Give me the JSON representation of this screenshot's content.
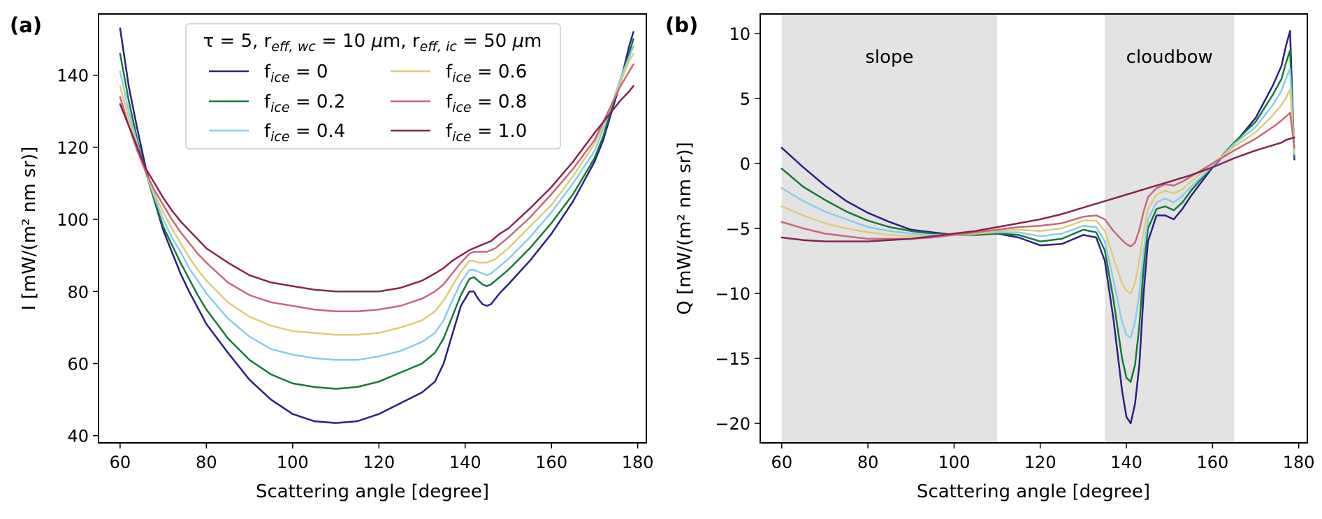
{
  "figure": {
    "panel_a_label": "(a)",
    "panel_b_label": "(b)"
  },
  "colors": {
    "series": [
      "#2a1e87",
      "#137a35",
      "#88ccee",
      "#ddcc77",
      "#cc6677",
      "#882255"
    ],
    "shade": "#e3e3e3"
  },
  "chart_data": [
    {
      "type": "line",
      "panel": "(a)",
      "xlabel": "Scattering angle [degree]",
      "ylabel": "I [mW/(m² nm sr)]",
      "xlim": [
        55,
        182
      ],
      "ylim": [
        38,
        157
      ],
      "xticks": [
        60,
        80,
        100,
        120,
        140,
        160,
        180
      ],
      "yticks": [
        40,
        60,
        80,
        100,
        120,
        140
      ],
      "legend": {
        "title": "τ = 5, r_eff,wc = 10 μm, r_eff,ic = 50 μm",
        "placement": "top-center",
        "ncol": 2
      },
      "series": [
        {
          "name": "f_ice = 0",
          "x": [
            60,
            62,
            64,
            66,
            68,
            70,
            72,
            74,
            76,
            78,
            80,
            85,
            90,
            95,
            100,
            105,
            110,
            115,
            120,
            125,
            130,
            133,
            135,
            137,
            139,
            141,
            142,
            143,
            144,
            145,
            146,
            147,
            148,
            150,
            155,
            160,
            165,
            170,
            172,
            174,
            176,
            178,
            179
          ],
          "y": [
            153,
            137,
            125,
            114,
            105,
            97,
            91,
            85,
            80,
            75.5,
            71,
            63,
            55.5,
            50,
            46,
            44,
            43.5,
            44,
            46,
            49,
            52,
            55,
            60,
            68,
            76,
            80,
            80,
            78,
            76.5,
            76,
            76.5,
            78,
            79.5,
            82,
            88.5,
            96,
            105,
            116,
            122,
            130,
            138,
            148,
            152
          ]
        },
        {
          "name": "f_ice = 0.2",
          "x": [
            60,
            62,
            64,
            66,
            68,
            70,
            72,
            74,
            76,
            78,
            80,
            85,
            90,
            95,
            100,
            105,
            110,
            115,
            120,
            125,
            130,
            133,
            135,
            137,
            139,
            141,
            142,
            143,
            144,
            145,
            146,
            147,
            148,
            150,
            155,
            160,
            165,
            170,
            172,
            174,
            176,
            178,
            179
          ],
          "y": [
            146,
            133,
            122,
            113,
            105,
            98,
            93,
            88,
            83.5,
            79,
            75,
            67,
            61,
            57,
            54.5,
            53.5,
            53,
            53.5,
            55,
            57.5,
            60,
            63,
            67,
            73,
            79,
            83.5,
            84,
            83,
            82,
            81.5,
            82,
            83,
            84,
            86,
            92,
            99,
            107,
            117,
            123,
            131,
            139,
            146,
            150
          ]
        },
        {
          "name": "f_ice = 0.4",
          "x": [
            60,
            62,
            64,
            66,
            68,
            70,
            72,
            74,
            76,
            78,
            80,
            85,
            90,
            95,
            100,
            105,
            110,
            115,
            120,
            125,
            130,
            133,
            135,
            137,
            139,
            141,
            142,
            143,
            144,
            145,
            146,
            147,
            148,
            150,
            155,
            160,
            165,
            170,
            172,
            174,
            176,
            178,
            179
          ],
          "y": [
            141,
            130,
            121,
            113,
            106,
            100,
            95,
            91,
            86.5,
            83,
            79.5,
            72.5,
            67.5,
            64,
            62.5,
            61.5,
            61,
            61,
            62,
            63.5,
            66,
            68.5,
            72,
            77.5,
            82.5,
            86,
            86,
            85.5,
            85,
            84.5,
            85,
            86,
            87,
            89,
            95,
            102,
            110,
            119,
            125,
            132,
            139,
            145,
            148
          ]
        },
        {
          "name": "f_ice = 0.6",
          "x": [
            60,
            62,
            64,
            66,
            68,
            70,
            72,
            74,
            76,
            78,
            80,
            85,
            90,
            95,
            100,
            105,
            110,
            115,
            120,
            125,
            130,
            133,
            135,
            137,
            139,
            141,
            142,
            143,
            144,
            145,
            146,
            147,
            148,
            150,
            155,
            160,
            165,
            170,
            172,
            174,
            176,
            178,
            179
          ],
          "y": [
            137,
            128,
            120,
            113,
            107,
            102,
            97.5,
            93.5,
            89.5,
            86,
            83,
            77,
            73,
            70.5,
            69,
            68.5,
            68,
            68,
            68.5,
            70,
            72,
            74.5,
            77.5,
            81.5,
            85.5,
            88.5,
            88.5,
            88,
            88,
            88,
            88.5,
            89,
            90,
            92,
            98,
            104,
            112,
            121,
            126,
            132,
            138,
            144,
            146
          ]
        },
        {
          "name": "f_ice = 0.8",
          "x": [
            60,
            62,
            64,
            66,
            68,
            70,
            72,
            74,
            76,
            78,
            80,
            85,
            90,
            95,
            100,
            105,
            110,
            115,
            120,
            125,
            130,
            133,
            135,
            137,
            139,
            141,
            142,
            143,
            144,
            145,
            146,
            147,
            148,
            150,
            155,
            160,
            165,
            170,
            172,
            174,
            176,
            178,
            179
          ],
          "y": [
            134,
            126,
            119,
            113,
            108,
            104,
            100,
            96.5,
            93.5,
            90.5,
            88,
            82.5,
            79,
            77,
            76,
            75,
            74.5,
            74.5,
            75,
            76,
            78,
            80,
            82,
            85,
            88,
            90.5,
            91,
            91,
            91,
            91,
            91.5,
            92,
            93,
            95,
            100.5,
            107,
            114,
            122,
            127,
            132,
            137,
            141,
            143
          ]
        },
        {
          "name": "f_ice = 1.0",
          "x": [
            60,
            62,
            64,
            66,
            68,
            70,
            72,
            74,
            76,
            78,
            80,
            85,
            90,
            95,
            100,
            105,
            110,
            115,
            120,
            125,
            130,
            133,
            135,
            137,
            139,
            141,
            142,
            143,
            144,
            145,
            146,
            147,
            148,
            150,
            155,
            160,
            165,
            170,
            172,
            174,
            176,
            178,
            179
          ],
          "y": [
            132,
            126,
            120,
            114,
            110,
            106,
            102.5,
            99.5,
            97,
            94.5,
            92,
            88,
            84.5,
            82.5,
            81.5,
            80.5,
            80,
            80,
            80,
            81,
            83,
            85,
            86.5,
            88.5,
            90,
            91.5,
            92,
            92.5,
            93,
            93.5,
            94,
            95,
            96,
            97.5,
            103,
            109,
            116,
            124,
            127,
            130,
            133,
            135.5,
            137
          ]
        }
      ]
    },
    {
      "type": "line",
      "panel": "(b)",
      "xlabel": "Scattering angle [degree]",
      "ylabel": "Q [mW/(m² nm sr)]",
      "xlim": [
        55,
        182
      ],
      "ylim": [
        -21.5,
        11.5
      ],
      "xticks": [
        60,
        80,
        100,
        120,
        140,
        160,
        180
      ],
      "yticks": [
        -20,
        -15,
        -10,
        -5,
        0,
        5,
        10
      ],
      "shaded_regions": [
        {
          "label": "slope",
          "x": [
            60,
            110
          ]
        },
        {
          "label": "cloudbow",
          "x": [
            135,
            165
          ]
        }
      ],
      "series": [
        {
          "name": "f_ice = 0",
          "x": [
            60,
            65,
            70,
            75,
            80,
            85,
            90,
            95,
            100,
            105,
            110,
            115,
            120,
            125,
            130,
            133,
            135,
            137,
            139,
            140,
            141,
            142,
            143,
            144,
            145,
            147,
            149,
            151,
            153,
            155,
            160,
            165,
            170,
            174,
            176,
            177,
            178,
            179
          ],
          "y": [
            1.2,
            -0.3,
            -1.7,
            -2.9,
            -3.8,
            -4.5,
            -5.1,
            -5.3,
            -5.5,
            -5.5,
            -5.4,
            -5.7,
            -6.3,
            -6.2,
            -5.5,
            -5.7,
            -7.5,
            -12,
            -17.5,
            -19.5,
            -20,
            -18.5,
            -15.5,
            -10,
            -6,
            -4,
            -4,
            -4.3,
            -3.5,
            -2.5,
            -0.3,
            1.5,
            3.5,
            6,
            7.5,
            9,
            10.2,
            0.3
          ]
        },
        {
          "name": "f_ice = 0.2",
          "x": [
            60,
            65,
            70,
            75,
            80,
            85,
            90,
            95,
            100,
            105,
            110,
            115,
            120,
            125,
            130,
            133,
            135,
            137,
            139,
            140,
            141,
            142,
            143,
            144,
            145,
            147,
            149,
            151,
            153,
            155,
            160,
            165,
            170,
            174,
            176,
            177,
            178,
            179
          ],
          "y": [
            -0.4,
            -1.8,
            -2.8,
            -3.7,
            -4.4,
            -4.9,
            -5.2,
            -5.4,
            -5.5,
            -5.5,
            -5.4,
            -5.5,
            -6,
            -5.8,
            -5.1,
            -5.3,
            -6.7,
            -10.5,
            -15,
            -16.5,
            -16.8,
            -15.5,
            -12.5,
            -8,
            -5,
            -3.5,
            -3.3,
            -3.6,
            -3,
            -2.1,
            -0.2,
            1.6,
            3.2,
            5.3,
            6.5,
            7.7,
            8.7,
            0.5
          ]
        },
        {
          "name": "f_ice = 0.4",
          "x": [
            60,
            65,
            70,
            75,
            80,
            85,
            90,
            95,
            100,
            105,
            110,
            115,
            120,
            125,
            130,
            133,
            135,
            137,
            139,
            140,
            141,
            142,
            143,
            144,
            145,
            147,
            149,
            151,
            153,
            155,
            160,
            165,
            170,
            174,
            176,
            177,
            178,
            179
          ],
          "y": [
            -1.9,
            -2.9,
            -3.7,
            -4.3,
            -4.9,
            -5.2,
            -5.4,
            -5.5,
            -5.5,
            -5.4,
            -5.3,
            -5.3,
            -5.6,
            -5.4,
            -4.8,
            -4.9,
            -6,
            -9,
            -12.2,
            -13.2,
            -13.4,
            -12.2,
            -10,
            -6.8,
            -4.3,
            -3,
            -2.7,
            -3,
            -2.5,
            -1.8,
            -0.2,
            1.5,
            2.8,
            4.5,
            5.6,
            6.5,
            7.3,
            0.7
          ]
        },
        {
          "name": "f_ice = 0.6",
          "x": [
            60,
            65,
            70,
            75,
            80,
            85,
            90,
            95,
            100,
            105,
            110,
            115,
            120,
            125,
            130,
            133,
            135,
            137,
            139,
            140,
            141,
            142,
            143,
            144,
            145,
            147,
            149,
            151,
            153,
            155,
            160,
            165,
            170,
            174,
            176,
            177,
            178,
            179
          ],
          "y": [
            -3.3,
            -4,
            -4.6,
            -5,
            -5.3,
            -5.5,
            -5.6,
            -5.6,
            -5.5,
            -5.4,
            -5.2,
            -5.1,
            -5.2,
            -5,
            -4.4,
            -4.4,
            -5.2,
            -7.3,
            -9.2,
            -9.8,
            -10,
            -9.2,
            -7.5,
            -5.2,
            -3.5,
            -2.4,
            -2.1,
            -2.3,
            -2,
            -1.4,
            0,
            1.3,
            2.4,
            3.7,
            4.5,
            5,
            5.7,
            0.9
          ]
        },
        {
          "name": "f_ice = 0.8",
          "x": [
            60,
            65,
            70,
            75,
            80,
            85,
            90,
            95,
            100,
            105,
            110,
            115,
            120,
            125,
            130,
            133,
            135,
            137,
            139,
            140,
            141,
            142,
            143,
            144,
            145,
            147,
            149,
            151,
            153,
            155,
            160,
            165,
            170,
            174,
            176,
            177,
            178,
            179
          ],
          "y": [
            -4.5,
            -5,
            -5.4,
            -5.6,
            -5.8,
            -5.8,
            -5.8,
            -5.7,
            -5.5,
            -5.3,
            -5.1,
            -4.9,
            -4.8,
            -4.6,
            -4.1,
            -4,
            -4.3,
            -5.2,
            -5.9,
            -6.2,
            -6.4,
            -6.1,
            -5.1,
            -3.7,
            -2.6,
            -1.9,
            -1.6,
            -1.7,
            -1.4,
            -1,
            0,
            1,
            1.9,
            2.8,
            3.3,
            3.6,
            3.9,
            1.2
          ]
        },
        {
          "name": "f_ice = 1.0",
          "x": [
            60,
            65,
            70,
            75,
            80,
            85,
            90,
            95,
            100,
            105,
            110,
            115,
            120,
            125,
            130,
            133,
            135,
            137,
            139,
            140,
            141,
            142,
            143,
            144,
            145,
            147,
            149,
            151,
            153,
            155,
            160,
            165,
            170,
            174,
            176,
            177,
            178,
            179
          ],
          "y": [
            -5.7,
            -5.9,
            -6,
            -6,
            -6,
            -5.9,
            -5.8,
            -5.6,
            -5.4,
            -5.2,
            -4.9,
            -4.6,
            -4.3,
            -3.9,
            -3.4,
            -3.1,
            -2.9,
            -2.7,
            -2.5,
            -2.4,
            -2.3,
            -2.2,
            -2.1,
            -2,
            -1.9,
            -1.7,
            -1.5,
            -1.3,
            -1.1,
            -0.9,
            -0.3,
            0.4,
            1,
            1.4,
            1.6,
            1.8,
            1.9,
            2
          ]
        }
      ]
    }
  ]
}
